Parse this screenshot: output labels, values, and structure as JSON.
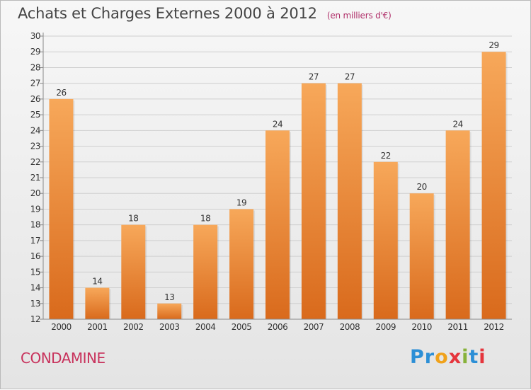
{
  "title": "Achats et Charges Externes 2000 à 2012",
  "subtitle": "(en milliers d'€)",
  "place": "CONDAMINE",
  "brand": {
    "text": "Proxiti",
    "letter_colors": [
      "#2c8fd6",
      "#2c8fd6",
      "#f0a21b",
      "#e5343c",
      "#87b23a",
      "#2c8fd6",
      "#e5343c"
    ]
  },
  "colors": {
    "bar_light": "#f7a85a",
    "bar_dark": "#d96a1c",
    "axis": "#888888",
    "grid": "#cfcfcf",
    "text": "#333333"
  },
  "chart_data": {
    "type": "bar",
    "categories": [
      "2000",
      "2001",
      "2002",
      "2003",
      "2004",
      "2005",
      "2006",
      "2007",
      "2008",
      "2009",
      "2010",
      "2011",
      "2012"
    ],
    "values": [
      26,
      14,
      18,
      13,
      18,
      19,
      24,
      27,
      27,
      22,
      20,
      24,
      29
    ],
    "ylim": [
      12,
      30
    ],
    "yticks": [
      12,
      13,
      14,
      15,
      16,
      17,
      18,
      19,
      20,
      21,
      22,
      23,
      24,
      25,
      26,
      27,
      28,
      29,
      30
    ],
    "title": "Achats et Charges Externes 2000 à 2012",
    "subtitle": "(en milliers d'€)",
    "grid": true,
    "data_labels": true
  }
}
